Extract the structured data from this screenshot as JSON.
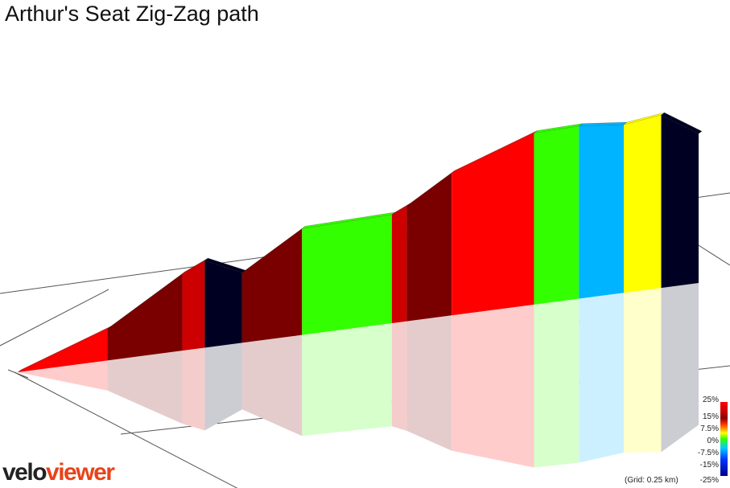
{
  "title": "Arthur's Seat Zig-Zag path",
  "brand": {
    "part_a": "velo",
    "part_b": "viewer"
  },
  "grid_note": "(Grid: 0.25 km)",
  "legend": {
    "ticks": [
      "25%",
      "15%",
      "7.5%",
      "0%",
      "-7.5%",
      "-15%",
      "-25%"
    ]
  },
  "chart_data": {
    "type": "area",
    "title": "Arthur's Seat Zig-Zag path",
    "xlabel": "",
    "ylabel": "",
    "grid": true,
    "grid_spacing_km": 0.25,
    "distance_unit": "km",
    "gradient_unit": "%",
    "gradient_scale": [
      -25,
      25
    ],
    "legend_position": "bottom-right",
    "segments": [
      {
        "start_km": 0.0,
        "end_km": 0.12,
        "gradient_pct": 14,
        "color": "#ff0000"
      },
      {
        "start_km": 0.12,
        "end_km": 0.22,
        "gradient_pct": 24,
        "color": "#7a0000"
      },
      {
        "start_km": 0.22,
        "end_km": 0.25,
        "gradient_pct": 18,
        "color": "#cc0000"
      },
      {
        "start_km": 0.25,
        "end_km": 0.3,
        "gradient_pct": -18,
        "color": "#000022"
      },
      {
        "start_km": 0.3,
        "end_km": 0.38,
        "gradient_pct": 24,
        "color": "#7a0000"
      },
      {
        "start_km": 0.38,
        "end_km": 0.5,
        "gradient_pct": 1,
        "color": "#33ff00"
      },
      {
        "start_km": 0.5,
        "end_km": 0.52,
        "gradient_pct": 18,
        "color": "#cc0000"
      },
      {
        "start_km": 0.52,
        "end_km": 0.58,
        "gradient_pct": 24,
        "color": "#7a0000"
      },
      {
        "start_km": 0.58,
        "end_km": 0.69,
        "gradient_pct": 14,
        "color": "#ff0000"
      },
      {
        "start_km": 0.69,
        "end_km": 0.75,
        "gradient_pct": 1,
        "color": "#33ff00"
      },
      {
        "start_km": 0.75,
        "end_km": 0.81,
        "gradient_pct": -4,
        "color": "#00b4ff"
      },
      {
        "start_km": 0.81,
        "end_km": 0.86,
        "gradient_pct": 5,
        "color": "#ffff00"
      },
      {
        "start_km": 0.86,
        "end_km": 0.91,
        "gradient_pct": -25,
        "color": "#000022"
      }
    ]
  }
}
